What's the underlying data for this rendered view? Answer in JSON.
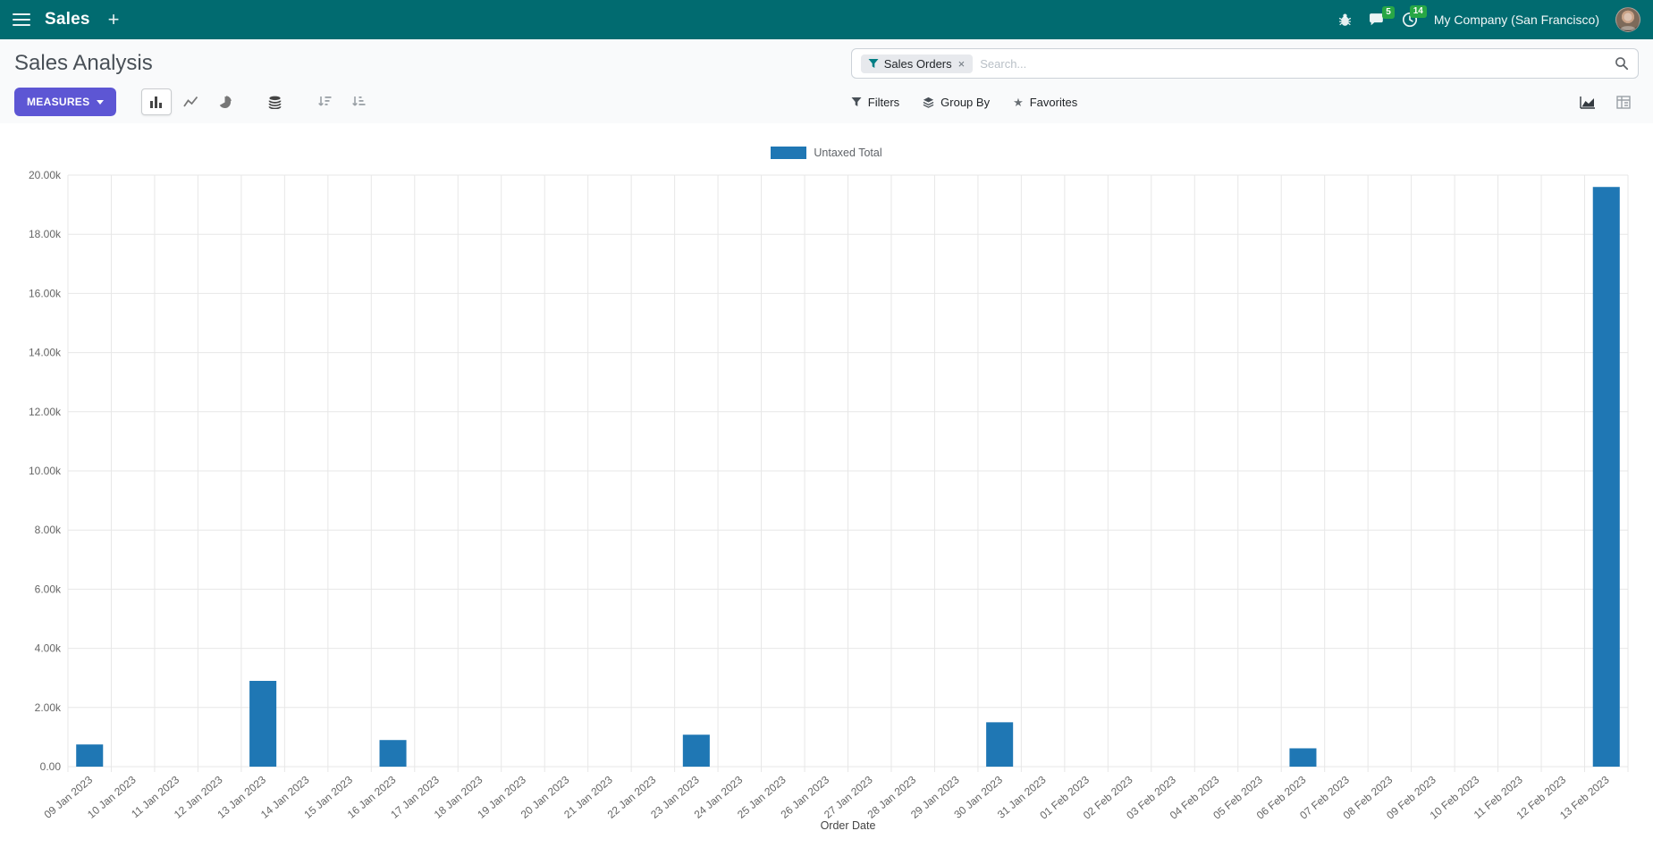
{
  "colors": {
    "navbar-bg": "#016b70",
    "primary-btn": "#5d56d4",
    "bar-color": "#1f77b4",
    "badge-bg": "#28a745"
  },
  "navbar": {
    "app_name": "Sales",
    "plus": "+",
    "messages_badge": "5",
    "activities_badge": "14",
    "company": "My Company (San Francisco)"
  },
  "control_panel": {
    "title": "Sales Analysis",
    "search": {
      "facet_label": "Sales Orders",
      "facet_close": "×",
      "placeholder": "Search..."
    },
    "measures_label": "MEASURES",
    "filters_label": "Filters",
    "group_by_label": "Group By",
    "favorites_label": "Favorites",
    "favorites_star": "★"
  },
  "chart_data": {
    "type": "bar",
    "title": "",
    "legend": [
      {
        "name": "Untaxed Total",
        "color": "#1f77b4"
      }
    ],
    "xlabel": "Order Date",
    "ylabel": "",
    "ylim": [
      0,
      20000
    ],
    "grid": true,
    "legend_position": "top-center",
    "y_ticks": [
      "0.00",
      "2.00k",
      "4.00k",
      "6.00k",
      "8.00k",
      "10.00k",
      "12.00k",
      "14.00k",
      "16.00k",
      "18.00k",
      "20.00k"
    ],
    "categories": [
      "09 Jan 2023",
      "10 Jan 2023",
      "11 Jan 2023",
      "12 Jan 2023",
      "13 Jan 2023",
      "14 Jan 2023",
      "15 Jan 2023",
      "16 Jan 2023",
      "17 Jan 2023",
      "18 Jan 2023",
      "19 Jan 2023",
      "20 Jan 2023",
      "21 Jan 2023",
      "22 Jan 2023",
      "23 Jan 2023",
      "24 Jan 2023",
      "25 Jan 2023",
      "26 Jan 2023",
      "27 Jan 2023",
      "28 Jan 2023",
      "29 Jan 2023",
      "30 Jan 2023",
      "31 Jan 2023",
      "01 Feb 2023",
      "02 Feb 2023",
      "03 Feb 2023",
      "04 Feb 2023",
      "05 Feb 2023",
      "06 Feb 2023",
      "07 Feb 2023",
      "08 Feb 2023",
      "09 Feb 2023",
      "10 Feb 2023",
      "11 Feb 2023",
      "12 Feb 2023",
      "13 Feb 2023"
    ],
    "series": [
      {
        "name": "Untaxed Total",
        "values": [
          750,
          0,
          0,
          0,
          2900,
          0,
          0,
          900,
          0,
          0,
          0,
          0,
          0,
          0,
          1080,
          0,
          0,
          0,
          0,
          0,
          0,
          1500,
          0,
          0,
          0,
          0,
          0,
          0,
          620,
          0,
          0,
          0,
          0,
          0,
          0,
          19600
        ]
      }
    ]
  }
}
